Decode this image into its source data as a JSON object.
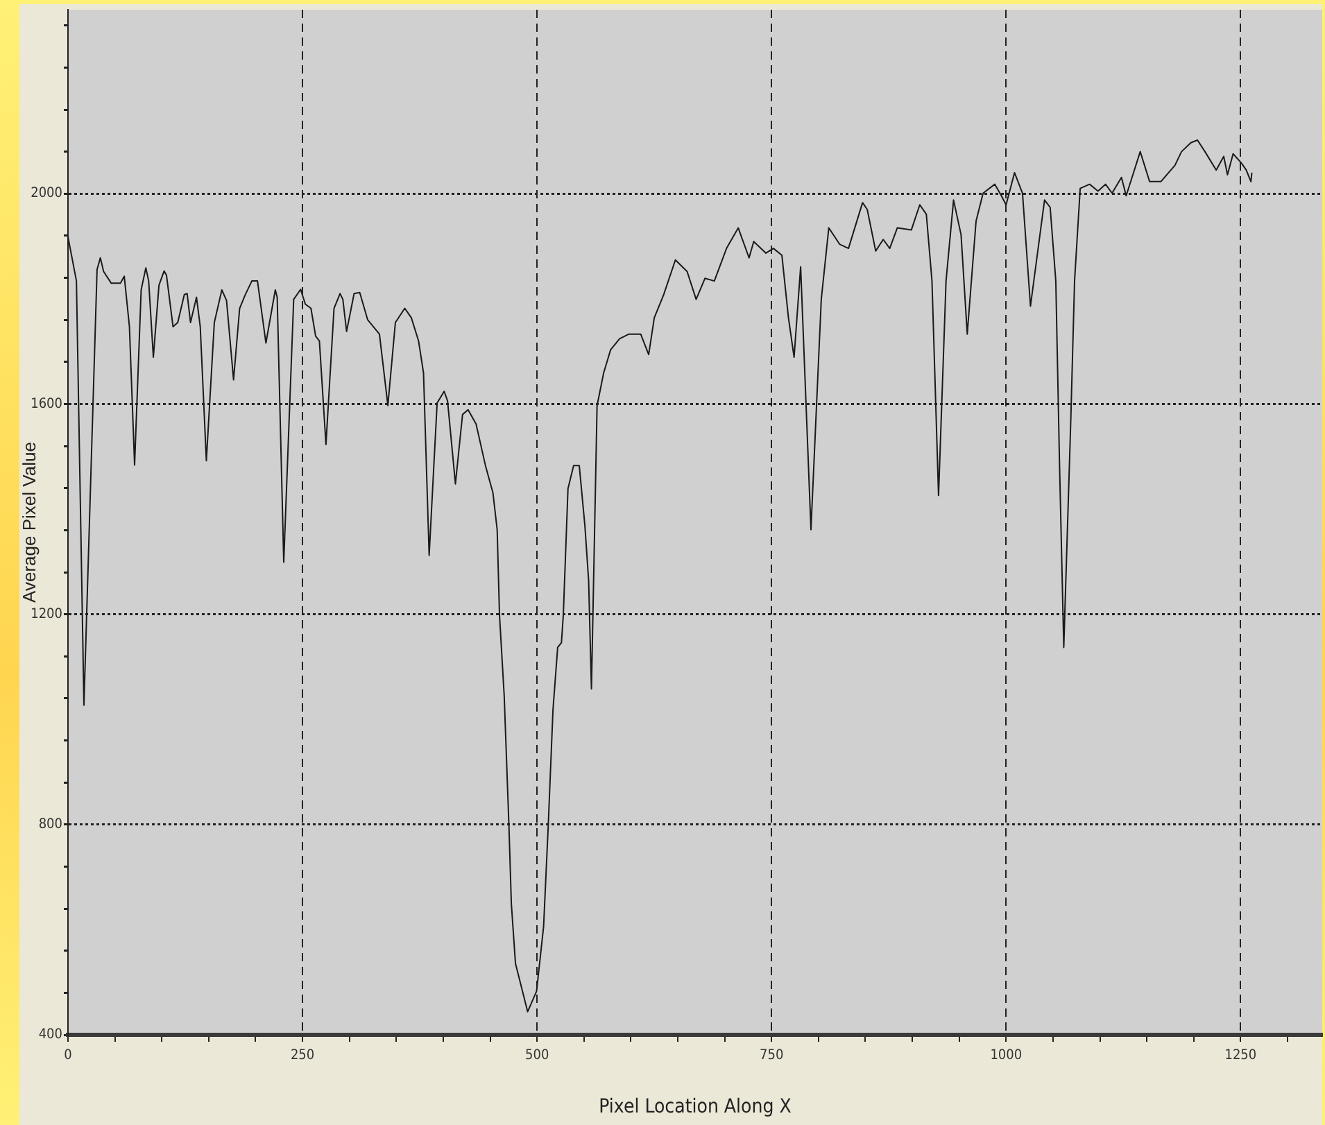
{
  "chart_data": {
    "type": "line",
    "xlabel": "Pixel Location Along X",
    "ylabel": "Average Pixel Value",
    "x": [
      0,
      9,
      17,
      31,
      34.5,
      38,
      46,
      56,
      60,
      65.5,
      71,
      78,
      83,
      86,
      91,
      97,
      102.5,
      105,
      112,
      117,
      124,
      127,
      130.6,
      137,
      141,
      147.5,
      156,
      164,
      169,
      176.5,
      183,
      189,
      196,
      202,
      211,
      221,
      223,
      230,
      240.6,
      248,
      253,
      259,
      264,
      268,
      275,
      283.6,
      290,
      293,
      297,
      305,
      311,
      319.5,
      332,
      341,
      349,
      359,
      366,
      373.7,
      379,
      385,
      393.5,
      401,
      404.6,
      413,
      420.6,
      426.5,
      435,
      445,
      453,
      457.5,
      460,
      465,
      470,
      472.6,
      477,
      490,
      499.5,
      507,
      512,
      517,
      522,
      526,
      528,
      533,
      539,
      545,
      551,
      555,
      558,
      564,
      571,
      578.4,
      588,
      598,
      610.5,
      619,
      625,
      635,
      647.5,
      660,
      669.6,
      679,
      689,
      702,
      714.5,
      726,
      731,
      744,
      752,
      761,
      768,
      774,
      781,
      792,
      803,
      811,
      822.5,
      832,
      847,
      852,
      861,
      869,
      876,
      884,
      899,
      908,
      915,
      921,
      928,
      936,
      944,
      952,
      958.6,
      968,
      975.5,
      988,
      995,
      1000,
      1009,
      1017.5,
      1026,
      1041,
      1047,
      1053,
      1057,
      1061.5,
      1069,
      1073,
      1079,
      1089,
      1098,
      1106,
      1113,
      1123,
      1128,
      1143,
      1153,
      1165,
      1180,
      1187,
      1197,
      1204,
      1212,
      1224,
      1232,
      1236,
      1242,
      1251,
      1256,
      1261,
      1262
    ],
    "series": [
      {
        "color": "#1a1a1a",
        "values": [
          1918,
          1834,
          1027,
          1856,
          1878,
          1852,
          1830,
          1830,
          1843,
          1747,
          1484,
          1817,
          1859,
          1834,
          1689,
          1826,
          1853,
          1845,
          1747,
          1755,
          1808,
          1810,
          1755,
          1803,
          1747,
          1492,
          1755,
          1817,
          1797,
          1646,
          1782,
          1808,
          1834,
          1834,
          1716,
          1817,
          1803,
          1299,
          1799,
          1818,
          1790,
          1782,
          1729,
          1720,
          1523,
          1782,
          1810,
          1799,
          1738,
          1810,
          1812,
          1760,
          1733,
          1597,
          1755,
          1782,
          1764,
          1720,
          1659,
          1312,
          1602,
          1624,
          1606,
          1448,
          1580,
          1589,
          1562,
          1483,
          1431,
          1361,
          1198,
          1045,
          800,
          650,
          536,
          444,
          483,
          606,
          800,
          1018,
          1137,
          1146,
          1198,
          1439,
          1483,
          1483,
          1369,
          1264,
          1058,
          1597,
          1659,
          1703,
          1724,
          1733,
          1733,
          1694,
          1764,
          1808,
          1874,
          1852,
          1799,
          1839,
          1834,
          1896,
          1935,
          1878,
          1909,
          1887,
          1896,
          1883,
          1764,
          1689,
          1861,
          1361,
          1799,
          1935,
          1904,
          1896,
          1983,
          1970,
          1891,
          1913,
          1896,
          1935,
          1931,
          1979,
          1961,
          1834,
          1426,
          1834,
          1988,
          1922,
          1733,
          1948,
          2001,
          2018,
          1996,
          1979,
          2040,
          2001,
          1786,
          1988,
          1974,
          1834,
          1483,
          1137,
          1571,
          1834,
          2010,
          2018,
          2005,
          2018,
          2001,
          2031,
          1996,
          2080,
          2023,
          2023,
          2054,
          2080,
          2097,
          2102,
          2080,
          2045,
          2071,
          2036,
          2076,
          2058,
          2045,
          2023,
          2040
        ]
      }
    ],
    "xlim": [
      0,
      1337
    ],
    "xticks": [
      0,
      {
        "value": 50,
        "label": null
      },
      {
        "value": 100,
        "label": null
      },
      {
        "value": 150,
        "label": null
      },
      {
        "value": 200,
        "label": null
      },
      250,
      {
        "value": 300,
        "label": null
      },
      {
        "value": 350,
        "label": null
      },
      {
        "value": 400,
        "label": null
      },
      {
        "value": 450,
        "label": null
      },
      500,
      {
        "value": 550,
        "label": null
      },
      {
        "value": 600,
        "label": null
      },
      {
        "value": 650,
        "label": null
      },
      {
        "value": 700,
        "label": null
      },
      750,
      {
        "value": 800,
        "label": null
      },
      {
        "value": 850,
        "label": null
      },
      {
        "value": 900,
        "label": null
      },
      {
        "value": 950,
        "label": null
      },
      1000,
      {
        "value": 1050,
        "label": null
      },
      {
        "value": 1100,
        "label": null
      },
      {
        "value": 1150,
        "label": null
      },
      {
        "value": 1200,
        "label": null
      },
      1250,
      {
        "value": 1300,
        "label": null
      }
    ],
    "ylim": [
      400,
      2350
    ],
    "yticks": [
      400,
      {
        "value": 480,
        "label": null
      },
      {
        "value": 560,
        "label": null
      },
      {
        "value": 640,
        "label": null
      },
      {
        "value": 720,
        "label": null
      },
      800,
      {
        "value": 880,
        "label": null
      },
      {
        "value": 960,
        "label": null
      },
      {
        "value": 1040,
        "label": null
      },
      {
        "value": 1120,
        "label": null
      },
      1200,
      {
        "value": 1280,
        "label": null
      },
      {
        "value": 1360,
        "label": null
      },
      {
        "value": 1440,
        "label": null
      },
      {
        "value": 1520,
        "label": null
      },
      1600,
      {
        "value": 1680,
        "label": null
      },
      {
        "value": 1760,
        "label": null
      },
      {
        "value": 1840,
        "label": null
      },
      {
        "value": 1920,
        "label": null
      },
      2000,
      {
        "value": 2080,
        "label": null
      },
      {
        "value": 2160,
        "label": null
      },
      {
        "value": 2240,
        "label": null
      },
      {
        "value": 2320,
        "label": null
      }
    ],
    "grid": true,
    "marker": "none",
    "line_style": "solid"
  }
}
